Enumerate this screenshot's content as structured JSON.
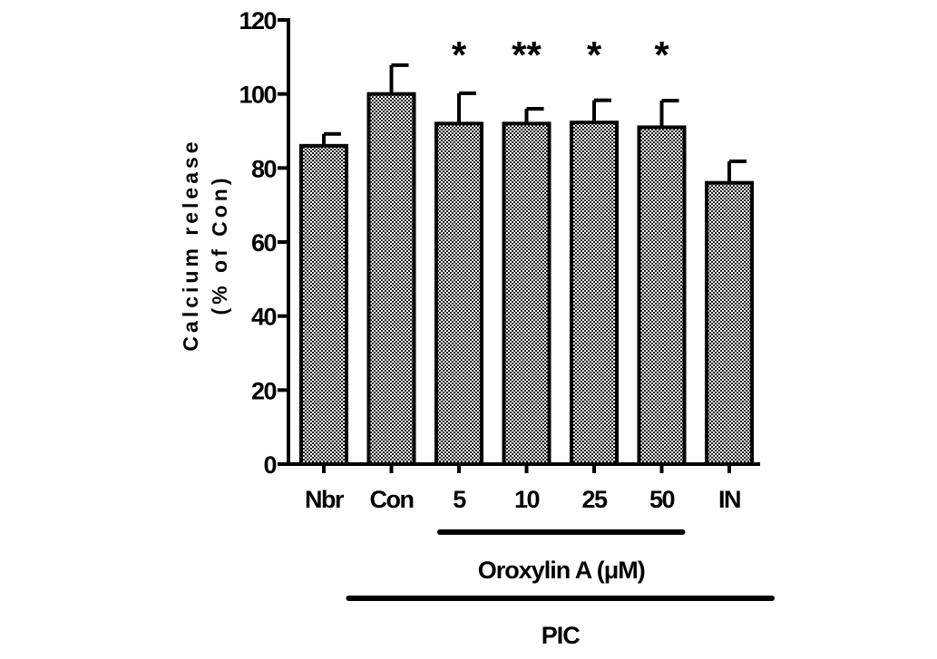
{
  "chart_data": {
    "type": "bar",
    "categories": [
      "Nbr",
      "Con",
      "5",
      "10",
      "25",
      "50",
      "IN"
    ],
    "values": [
      86,
      100,
      92,
      92,
      92.3,
      91,
      76
    ],
    "errors": [
      3.2,
      7.8,
      8.2,
      4,
      6,
      7.2,
      5.8
    ],
    "significance": [
      "",
      "",
      "*",
      "**",
      "*",
      "*",
      ""
    ],
    "ylabel_line1": "Calcium release",
    "ylabel_line2": "(% of Con)",
    "ylim": [
      0,
      120
    ],
    "yticks": [
      0,
      20,
      40,
      60,
      80,
      100,
      120
    ],
    "bar_fill": "checkered",
    "colors": {
      "bar_pattern_dark": "#000000",
      "bar_pattern_light": "#ffffff",
      "axis": "#000000"
    },
    "groups": [
      {
        "label": "Oroxylin A (μM)",
        "from": "5",
        "to": "50"
      },
      {
        "label": "PIC",
        "from": "Con",
        "to": "IN"
      }
    ]
  }
}
